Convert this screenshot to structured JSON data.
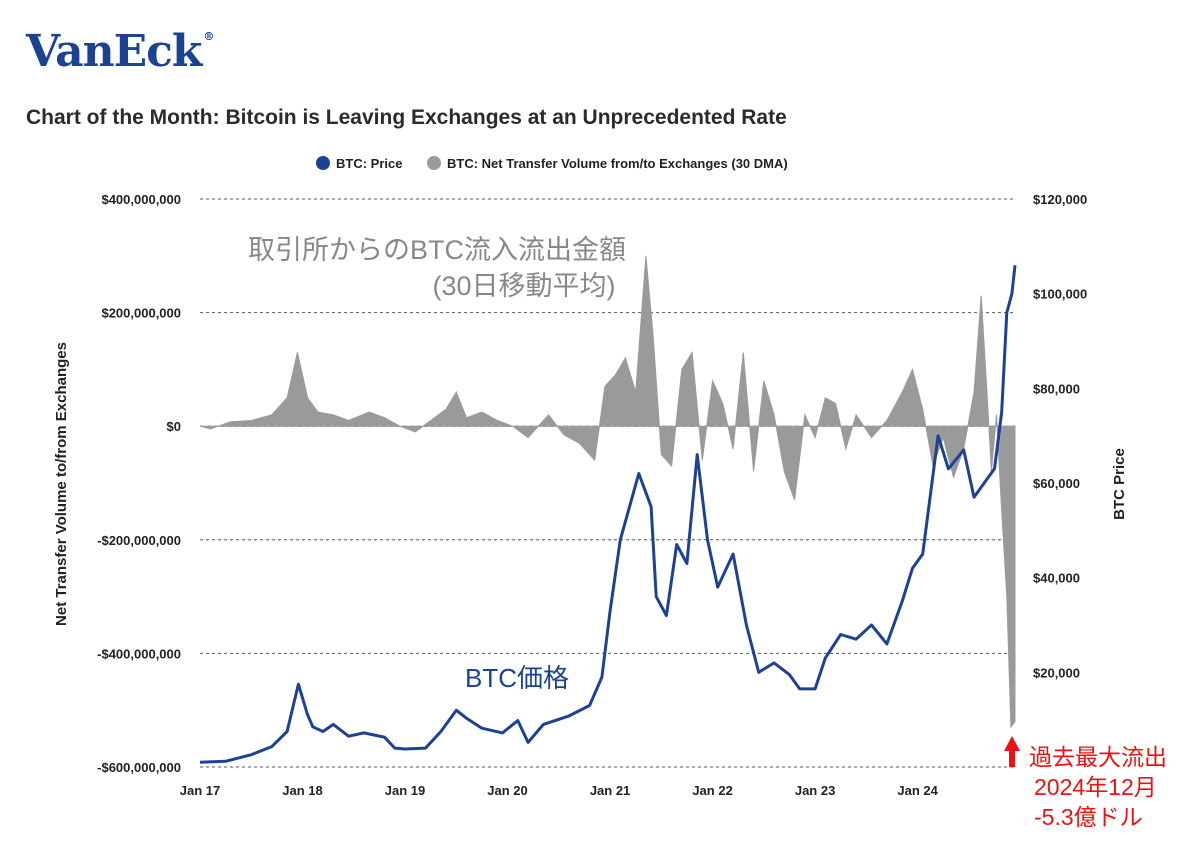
{
  "logo": {
    "text": "VanEck",
    "mark": "®"
  },
  "chart_data": {
    "type": "line",
    "title": "Chart of the Month: Bitcoin is Leaving Exchanges at an Unprecedented Rate",
    "legend": [
      {
        "name": "BTC: Price",
        "color": "#1d4294"
      },
      {
        "name": "BTC: Net Transfer Volume from/to Exchanges (30 DMA)",
        "color": "#9a9a9a"
      }
    ],
    "legend_position": "top-center",
    "grid": "horizontal-dashed",
    "ylabel": "Net Transfer Volume to/from Exchanges",
    "y2label": "BTC Price",
    "ylim": [
      -600000000,
      400000000
    ],
    "y2lim": [
      0,
      120000
    ],
    "xlim": [
      2017.0,
      2024.95
    ],
    "x_ticks": [
      {
        "label": "Jan 17",
        "value": 2017
      },
      {
        "label": "Jan 18",
        "value": 2018
      },
      {
        "label": "Jan 19",
        "value": 2019
      },
      {
        "label": "Jan 20",
        "value": 2020
      },
      {
        "label": "Jan 21",
        "value": 2021
      },
      {
        "label": "Jan 22",
        "value": 2022
      },
      {
        "label": "Jan 23",
        "value": 2023
      },
      {
        "label": "Jan 24",
        "value": 2024
      }
    ],
    "y_ticks": [
      {
        "label": "$400,000,000",
        "value": 400000000
      },
      {
        "label": "$200,000,000",
        "value": 200000000
      },
      {
        "label": "$0",
        "value": 0
      },
      {
        "label": "-$200,000,000",
        "value": -200000000
      },
      {
        "label": "-$400,000,000",
        "value": -400000000
      },
      {
        "label": "-$600,000,000",
        "value": -600000000
      }
    ],
    "y2_ticks": [
      {
        "label": "$120,000",
        "value": 120000
      },
      {
        "label": "$100,000",
        "value": 100000
      },
      {
        "label": "$80,000",
        "value": 80000
      },
      {
        "label": "$60,000",
        "value": 60000
      },
      {
        "label": "$40,000",
        "value": 40000
      },
      {
        "label": "$20,000",
        "value": 20000
      }
    ],
    "series": [
      {
        "name": "BTC: Price",
        "axis": "right",
        "color": "#1d4294",
        "points": [
          [
            2017.0,
            1000
          ],
          [
            2017.25,
            1200
          ],
          [
            2017.5,
            2600
          ],
          [
            2017.7,
            4300
          ],
          [
            2017.85,
            7500
          ],
          [
            2017.96,
            17500
          ],
          [
            2018.05,
            11000
          ],
          [
            2018.1,
            8500
          ],
          [
            2018.2,
            7500
          ],
          [
            2018.3,
            9000
          ],
          [
            2018.45,
            6500
          ],
          [
            2018.6,
            7200
          ],
          [
            2018.8,
            6300
          ],
          [
            2018.9,
            4000
          ],
          [
            2019.0,
            3800
          ],
          [
            2019.2,
            4000
          ],
          [
            2019.35,
            7500
          ],
          [
            2019.5,
            12000
          ],
          [
            2019.6,
            10300
          ],
          [
            2019.75,
            8200
          ],
          [
            2019.95,
            7200
          ],
          [
            2020.1,
            9800
          ],
          [
            2020.2,
            5200
          ],
          [
            2020.35,
            9000
          ],
          [
            2020.6,
            10800
          ],
          [
            2020.8,
            13000
          ],
          [
            2020.92,
            19000
          ],
          [
            2021.0,
            33000
          ],
          [
            2021.1,
            48000
          ],
          [
            2021.28,
            62000
          ],
          [
            2021.4,
            55000
          ],
          [
            2021.45,
            36000
          ],
          [
            2021.55,
            32000
          ],
          [
            2021.65,
            47000
          ],
          [
            2021.75,
            43000
          ],
          [
            2021.85,
            66000
          ],
          [
            2021.95,
            48000
          ],
          [
            2022.05,
            38000
          ],
          [
            2022.2,
            45000
          ],
          [
            2022.33,
            30000
          ],
          [
            2022.45,
            20000
          ],
          [
            2022.6,
            22000
          ],
          [
            2022.75,
            19500
          ],
          [
            2022.85,
            16500
          ],
          [
            2023.0,
            16500
          ],
          [
            2023.1,
            23000
          ],
          [
            2023.25,
            28000
          ],
          [
            2023.4,
            27000
          ],
          [
            2023.55,
            30000
          ],
          [
            2023.7,
            26000
          ],
          [
            2023.85,
            35000
          ],
          [
            2023.95,
            42000
          ],
          [
            2024.05,
            45000
          ],
          [
            2024.2,
            70000
          ],
          [
            2024.3,
            63000
          ],
          [
            2024.45,
            67000
          ],
          [
            2024.55,
            57000
          ],
          [
            2024.65,
            60000
          ],
          [
            2024.75,
            63000
          ],
          [
            2024.82,
            75000
          ],
          [
            2024.87,
            96000
          ],
          [
            2024.92,
            100000
          ],
          [
            2024.95,
            106000
          ]
        ]
      },
      {
        "name": "BTC: Net Transfer Volume from/to Exchanges (30 DMA)",
        "axis": "left",
        "color": "#9a9a9a",
        "points": [
          [
            2017.0,
            0
          ],
          [
            2017.1,
            -5000000
          ],
          [
            2017.3,
            8000000
          ],
          [
            2017.5,
            10000000
          ],
          [
            2017.7,
            20000000
          ],
          [
            2017.85,
            50000000
          ],
          [
            2017.95,
            130000000
          ],
          [
            2018.05,
            50000000
          ],
          [
            2018.15,
            25000000
          ],
          [
            2018.3,
            20000000
          ],
          [
            2018.45,
            10000000
          ],
          [
            2018.65,
            25000000
          ],
          [
            2018.8,
            15000000
          ],
          [
            2018.95,
            0
          ],
          [
            2019.1,
            -10000000
          ],
          [
            2019.25,
            10000000
          ],
          [
            2019.4,
            30000000
          ],
          [
            2019.5,
            60000000
          ],
          [
            2019.6,
            15000000
          ],
          [
            2019.75,
            25000000
          ],
          [
            2019.9,
            10000000
          ],
          [
            2020.05,
            0
          ],
          [
            2020.2,
            -20000000
          ],
          [
            2020.4,
            20000000
          ],
          [
            2020.55,
            -15000000
          ],
          [
            2020.7,
            -30000000
          ],
          [
            2020.85,
            -60000000
          ],
          [
            2020.95,
            70000000
          ],
          [
            2021.05,
            90000000
          ],
          [
            2021.15,
            120000000
          ],
          [
            2021.25,
            60000000
          ],
          [
            2021.35,
            300000000
          ],
          [
            2021.42,
            160000000
          ],
          [
            2021.5,
            -50000000
          ],
          [
            2021.6,
            -70000000
          ],
          [
            2021.7,
            100000000
          ],
          [
            2021.8,
            130000000
          ],
          [
            2021.9,
            -60000000
          ],
          [
            2022.0,
            80000000
          ],
          [
            2022.1,
            40000000
          ],
          [
            2022.2,
            -40000000
          ],
          [
            2022.3,
            130000000
          ],
          [
            2022.4,
            -80000000
          ],
          [
            2022.5,
            80000000
          ],
          [
            2022.6,
            20000000
          ],
          [
            2022.7,
            -80000000
          ],
          [
            2022.8,
            -130000000
          ],
          [
            2022.9,
            20000000
          ],
          [
            2023.0,
            -20000000
          ],
          [
            2023.1,
            50000000
          ],
          [
            2023.2,
            40000000
          ],
          [
            2023.3,
            -40000000
          ],
          [
            2023.4,
            20000000
          ],
          [
            2023.55,
            -20000000
          ],
          [
            2023.7,
            10000000
          ],
          [
            2023.85,
            60000000
          ],
          [
            2023.95,
            100000000
          ],
          [
            2024.05,
            30000000
          ],
          [
            2024.15,
            -70000000
          ],
          [
            2024.25,
            -20000000
          ],
          [
            2024.35,
            -90000000
          ],
          [
            2024.45,
            -40000000
          ],
          [
            2024.55,
            60000000
          ],
          [
            2024.62,
            230000000
          ],
          [
            2024.68,
            50000000
          ],
          [
            2024.72,
            -80000000
          ],
          [
            2024.77,
            20000000
          ],
          [
            2024.82,
            -150000000
          ],
          [
            2024.87,
            -300000000
          ],
          [
            2024.91,
            -530000000
          ],
          [
            2024.95,
            -520000000
          ]
        ]
      }
    ],
    "annotations": [
      {
        "text": "取引所からのBTC流入流出金額",
        "color": "#888888"
      },
      {
        "text": "(30日移動平均)",
        "color": "#888888"
      },
      {
        "text": "BTC価格",
        "color": "#1d4294"
      },
      {
        "text": "過去最大流出",
        "color": "#ee1111"
      },
      {
        "text": "2024年12月",
        "color": "#ee1111"
      },
      {
        "text": "-5.3億ドル",
        "color": "#ee1111"
      }
    ]
  }
}
